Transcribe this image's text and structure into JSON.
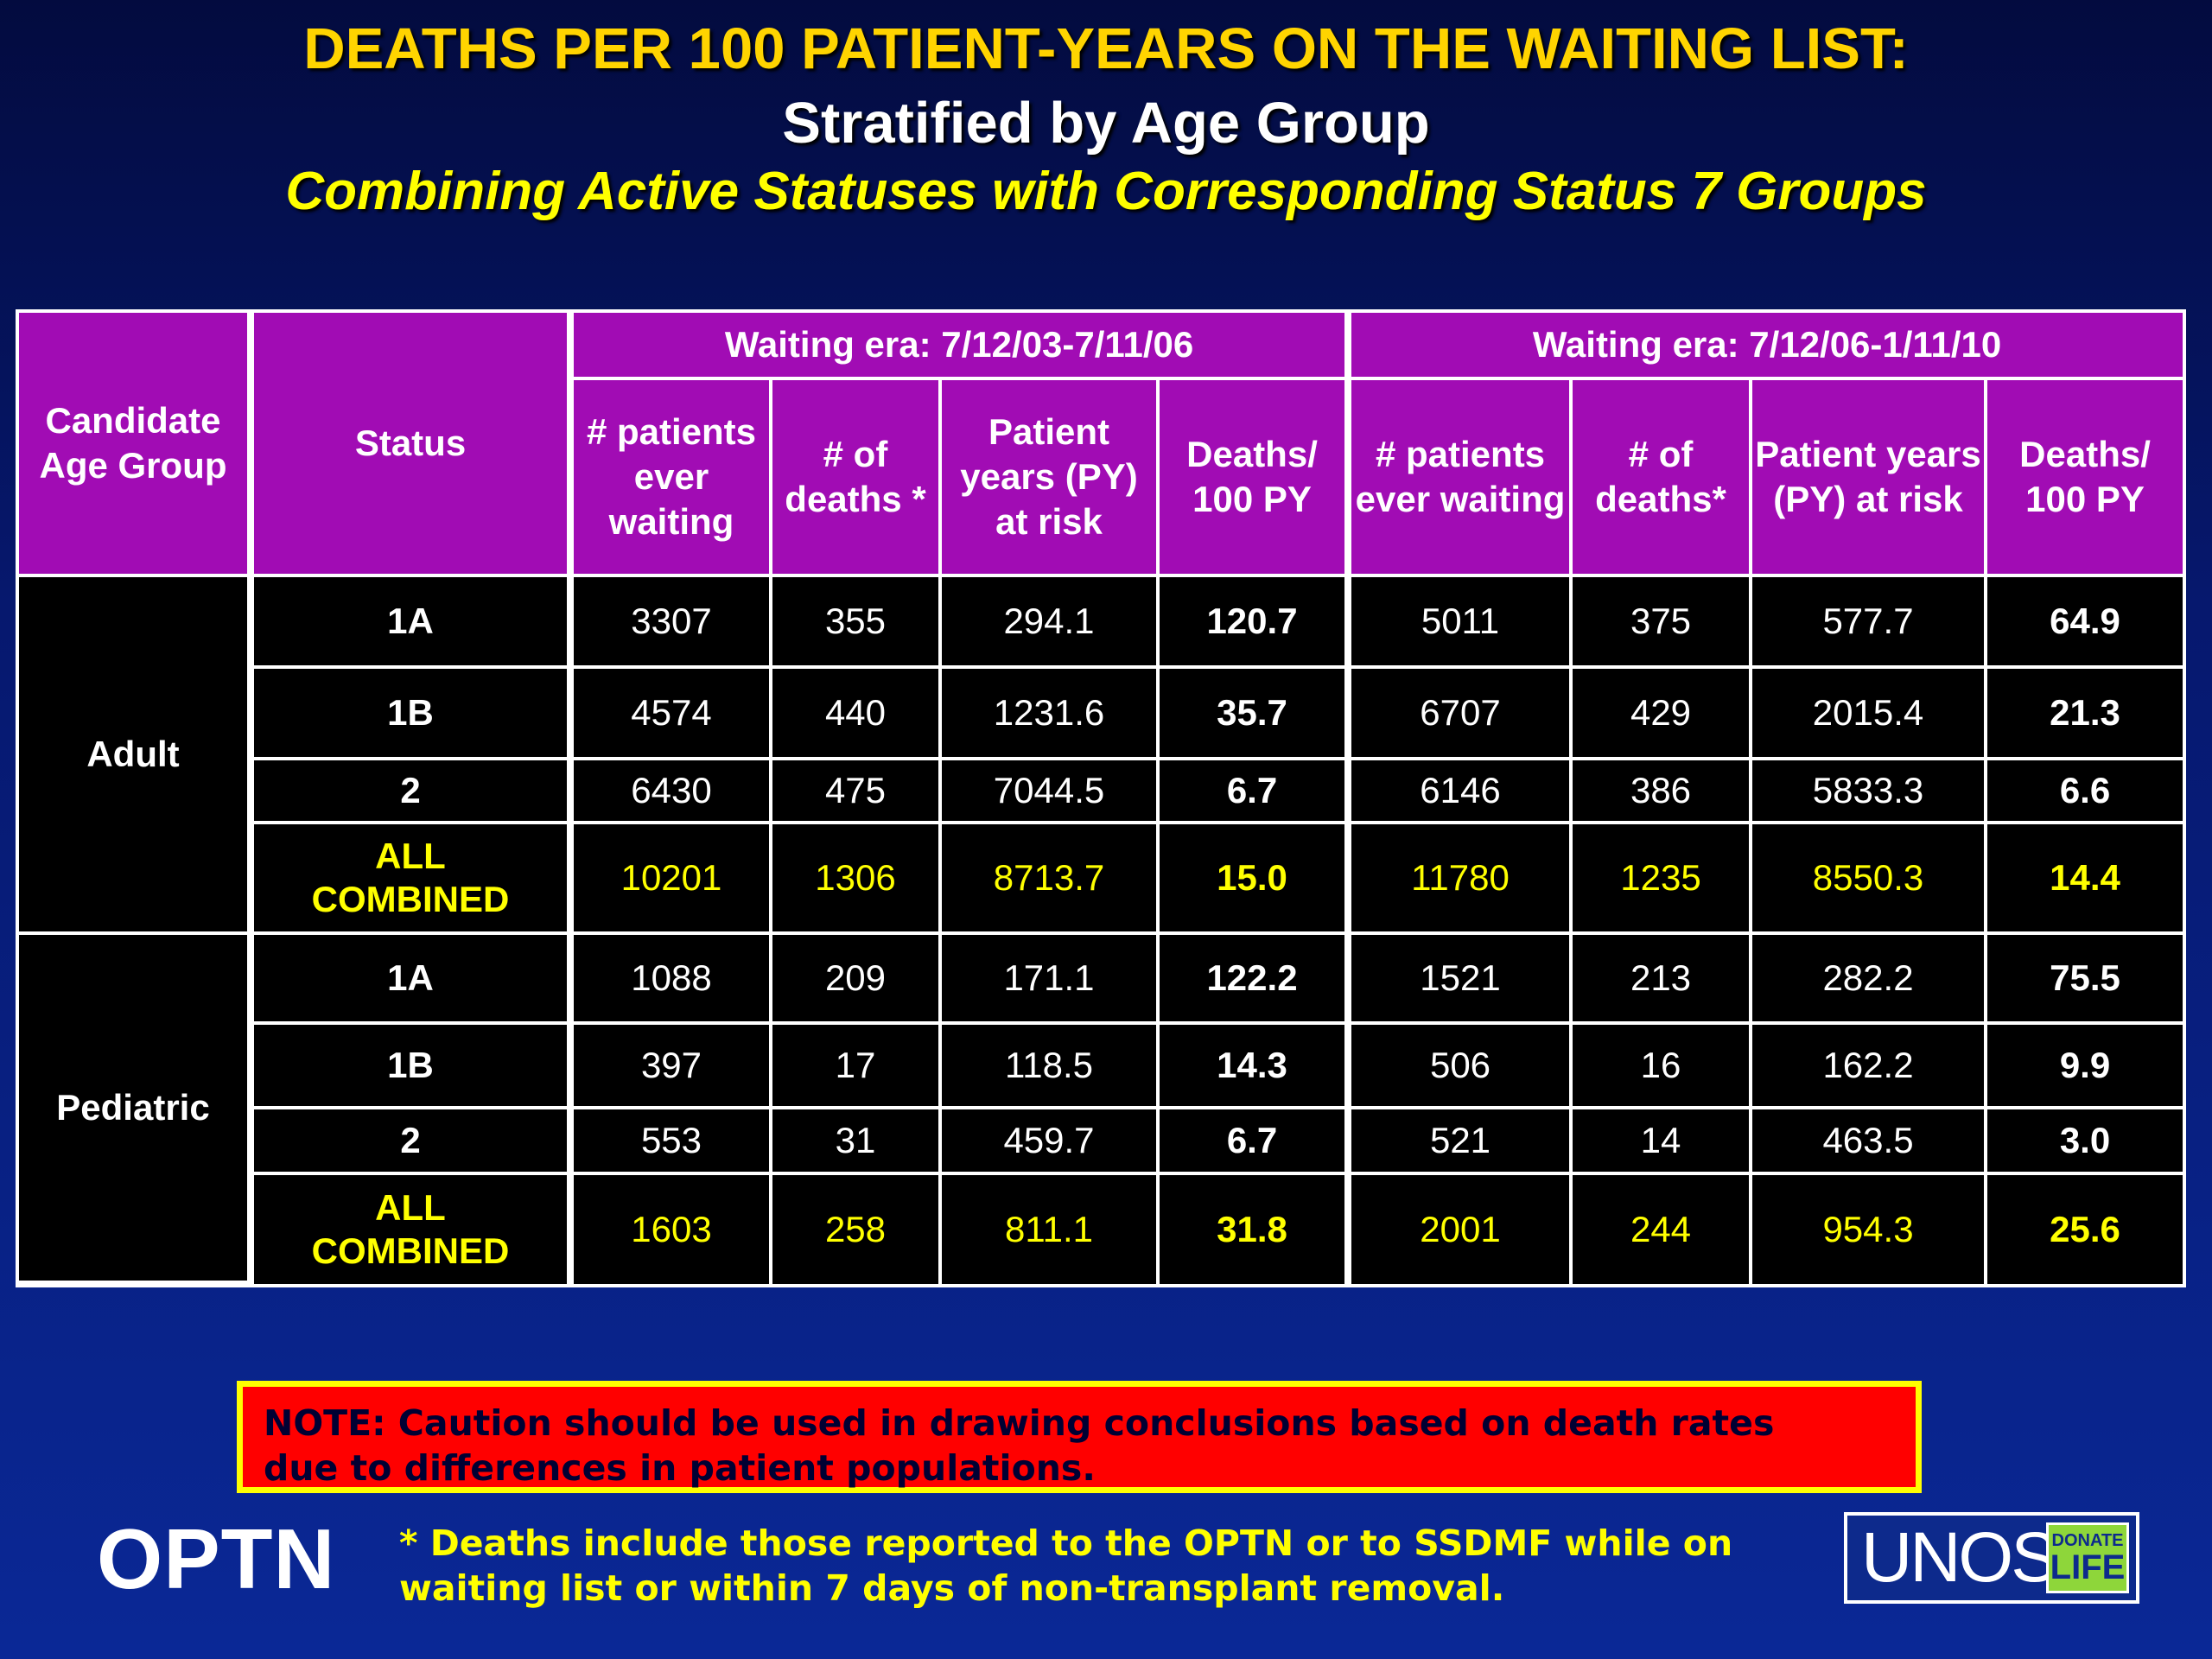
{
  "title": {
    "line1": "DEATHS PER 100 PATIENT-YEARS ON THE WAITING LIST:",
    "line2": "Stratified by Age Group",
    "line3": "Combining Active Statuses with Corresponding Status 7 Groups"
  },
  "table": {
    "headers": {
      "age_group": "Candidate Age Group",
      "status": "Status",
      "era1": "Waiting era: 7/12/03-7/11/06",
      "era2": "Waiting era: 7/12/06-1/11/10",
      "era1_cols": [
        "# patients ever waiting",
        "# of deaths *",
        "Patient years (PY) at risk",
        "Deaths/ 100 PY"
      ],
      "era2_cols": [
        "# patients ever waiting",
        "# of deaths*",
        "Patient years (PY) at risk",
        "Deaths/ 100 PY"
      ]
    },
    "groups": [
      {
        "age": "Adult",
        "rows": [
          {
            "status": "1A",
            "era1": [
              "3307",
              "355",
              "294.1",
              "120.7"
            ],
            "era2": [
              "5011",
              "375",
              "577.7",
              "64.9"
            ]
          },
          {
            "status": "1B",
            "era1": [
              "4574",
              "440",
              "1231.6",
              "35.7"
            ],
            "era2": [
              "6707",
              "429",
              "2015.4",
              "21.3"
            ]
          },
          {
            "status": "2",
            "era1": [
              "6430",
              "475",
              "7044.5",
              "6.7"
            ],
            "era2": [
              "6146",
              "386",
              "5833.3",
              "6.6"
            ]
          },
          {
            "status_line1": "ALL",
            "status_line2": "COMBINED",
            "era1": [
              "10201",
              "1306",
              "8713.7",
              "15.0"
            ],
            "era2": [
              "11780",
              "1235",
              "8550.3",
              "14.4"
            ]
          }
        ]
      },
      {
        "age": "Pediatric",
        "rows": [
          {
            "status": "1A",
            "era1": [
              "1088",
              "209",
              "171.1",
              "122.2"
            ],
            "era2": [
              "1521",
              "213",
              "282.2",
              "75.5"
            ]
          },
          {
            "status": "1B",
            "era1": [
              "397",
              "17",
              "118.5",
              "14.3"
            ],
            "era2": [
              "506",
              "16",
              "162.2",
              "9.9"
            ]
          },
          {
            "status": "2",
            "era1": [
              "553",
              "31",
              "459.7",
              "6.7"
            ],
            "era2": [
              "521",
              "14",
              "463.5",
              "3.0"
            ]
          },
          {
            "status_line1": "ALL",
            "status_line2": "COMBINED",
            "era1": [
              "1603",
              "258",
              "811.1",
              "31.8"
            ],
            "era2": [
              "2001",
              "244",
              "954.3",
              "25.6"
            ]
          }
        ]
      }
    ]
  },
  "note": {
    "line1": "NOTE: Caution should be used in drawing conclusions based on death rates",
    "line2": "due to differences in patient populations."
  },
  "footer": {
    "optn": "OPTN",
    "footnote_line1": "* Deaths include those reported to the OPTN or to SSDMF while on",
    "footnote_line2": "waiting list or within 7 days of non-transplant removal.",
    "unos": "UNOS",
    "donate_top": "DONATE",
    "donate_bottom": "LIFE"
  },
  "colors": {
    "header_bg": "#a10cb4",
    "rate_green": "#66ff33",
    "combined_yellow": "#ffff00",
    "note_bg": "#ff0000"
  }
}
